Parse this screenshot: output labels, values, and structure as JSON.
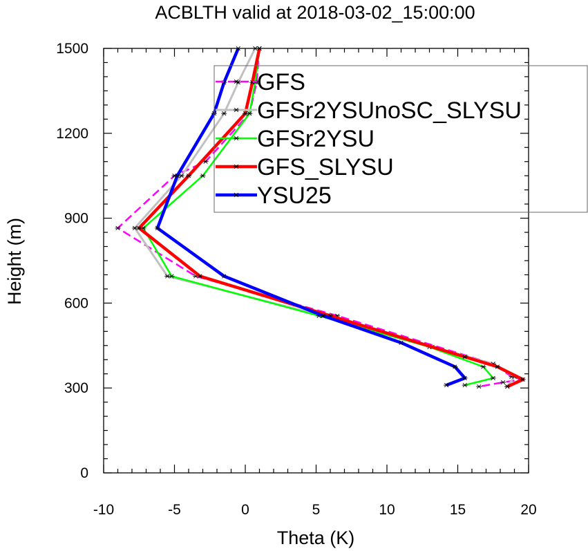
{
  "chart_data": {
    "type": "line",
    "title": "ACBLTH valid at 2018-03-02_15:00:00",
    "xlabel": "Theta (K)",
    "ylabel": "Height (m)",
    "xlim": [
      -10,
      20
    ],
    "ylim": [
      0,
      1500
    ],
    "x_ticks": [
      "-10",
      "-5",
      "0",
      "5",
      "10",
      "15",
      "20"
    ],
    "y_ticks": [
      "0",
      "300",
      "600",
      "900",
      "1200",
      "1500"
    ],
    "grid": false,
    "legend_position": "top-right",
    "series": [
      {
        "name": "GFS",
        "color": "#ff00ff",
        "style": "dashed",
        "points": [
          [
            1.0,
            1500
          ],
          [
            0.8,
            1380
          ],
          [
            0.3,
            1270
          ],
          [
            -2.8,
            1100
          ],
          [
            -5.0,
            1050
          ],
          [
            -9.0,
            865
          ],
          [
            -3.5,
            695
          ],
          [
            6.5,
            555
          ],
          [
            17.5,
            385
          ],
          [
            18.8,
            340
          ],
          [
            19.5,
            330
          ],
          [
            18.2,
            320
          ],
          [
            16.5,
            305
          ]
        ]
      },
      {
        "name": "GFSr2YSUnoSC_SLYSU",
        "color": "#c0c0c0",
        "style": "solid",
        "points": [
          [
            0.7,
            1500
          ],
          [
            -0.5,
            1380
          ],
          [
            -1.5,
            1270
          ],
          [
            -4.5,
            1050
          ],
          [
            -7.8,
            865
          ],
          [
            -5.5,
            695
          ],
          [
            5.5,
            555
          ],
          [
            13.2,
            445
          ],
          [
            17.5,
            385
          ],
          [
            19.0,
            340
          ],
          [
            18.5,
            305
          ]
        ]
      },
      {
        "name": "GFSr2YSU",
        "color": "#00ff00",
        "style": "solid",
        "points": [
          [
            1.0,
            1500
          ],
          [
            0.7,
            1380
          ],
          [
            0.3,
            1270
          ],
          [
            -3.0,
            1050
          ],
          [
            -7.2,
            865
          ],
          [
            -5.2,
            695
          ],
          [
            5.2,
            555
          ],
          [
            13.0,
            445
          ],
          [
            16.8,
            375
          ],
          [
            17.5,
            335
          ],
          [
            15.5,
            310
          ]
        ]
      },
      {
        "name": "GFS_SLYSU",
        "color": "#ff0000",
        "style": "solid",
        "points": [
          [
            1.0,
            1500
          ],
          [
            0.5,
            1380
          ],
          [
            0.0,
            1270
          ],
          [
            -4.0,
            1050
          ],
          [
            -7.5,
            865
          ],
          [
            -3.2,
            695
          ],
          [
            6.0,
            555
          ],
          [
            15.5,
            410
          ],
          [
            17.8,
            375
          ],
          [
            19.6,
            330
          ],
          [
            18.5,
            305
          ]
        ]
      },
      {
        "name": "YSU25",
        "color": "#0000ff",
        "style": "solid",
        "points": [
          [
            -0.5,
            1500
          ],
          [
            -1.5,
            1380
          ],
          [
            -2.2,
            1270
          ],
          [
            -4.8,
            1050
          ],
          [
            -6.2,
            865
          ],
          [
            -1.5,
            695
          ],
          [
            5.5,
            555
          ],
          [
            11.0,
            460
          ],
          [
            14.8,
            375
          ],
          [
            15.5,
            335
          ],
          [
            14.2,
            310
          ]
        ]
      }
    ]
  }
}
